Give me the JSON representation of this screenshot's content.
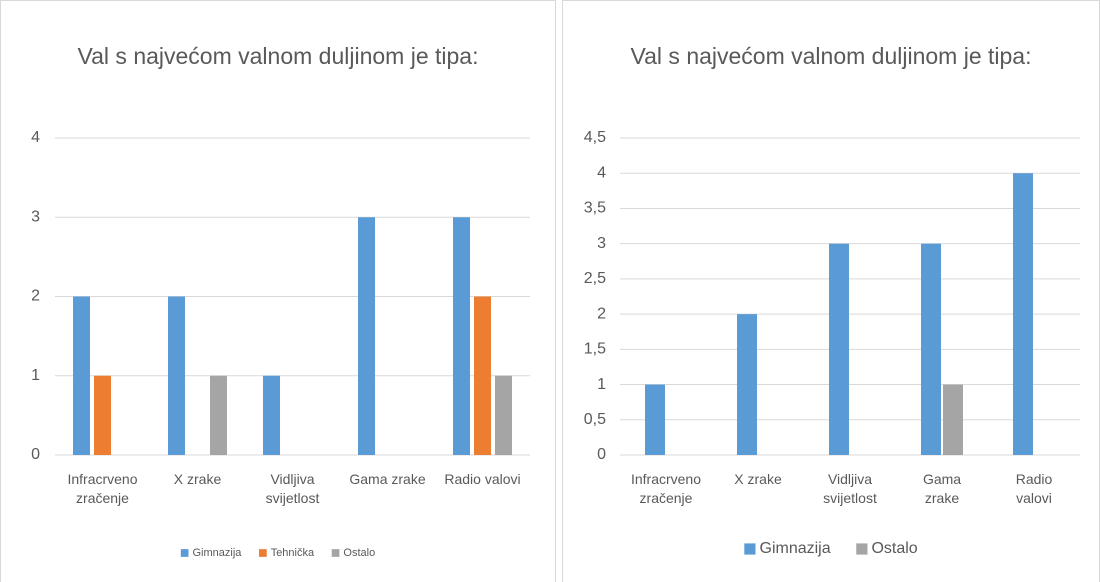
{
  "chart_data": [
    {
      "type": "bar",
      "title": "Val s najvećom valnom duljinom je tipa:",
      "categories": [
        "Infracrveno zračenje",
        "X zrake",
        "Vidljiva svijetlost",
        "Gama zrake",
        "Radio valovi"
      ],
      "series": [
        {
          "name": "Gimnazija",
          "color": "#5b9bd5",
          "values": [
            2,
            2,
            1,
            3,
            3
          ]
        },
        {
          "name": "Tehnička",
          "color": "#ed7d31",
          "values": [
            1,
            0,
            0,
            0,
            2
          ]
        },
        {
          "name": "Ostalo",
          "color": "#a5a5a5",
          "values": [
            0,
            1,
            0,
            0,
            1
          ]
        }
      ],
      "ylim": [
        0,
        4
      ],
      "yticks": [
        0,
        1,
        2,
        3,
        4
      ],
      "grid": true,
      "legend": "bottom"
    },
    {
      "type": "bar",
      "title": "Val s najvećom valnom duljinom je tipa:",
      "categories": [
        "Infracrveno zračenje",
        "X zrake",
        "Vidljiva svijetlost",
        "Gama zrake",
        "Radio valovi"
      ],
      "series": [
        {
          "name": "Gimnazija",
          "color": "#5b9bd5",
          "values": [
            1,
            2,
            3,
            3,
            4
          ]
        },
        {
          "name": "Ostalo",
          "color": "#a5a5a5",
          "values": [
            0,
            0,
            0,
            1,
            0
          ]
        }
      ],
      "ylim": [
        0,
        4.5
      ],
      "yticks": [
        0,
        {
          "value": 0.5,
          "label": "0,5"
        },
        1,
        {
          "value": 1.5,
          "label": "1,5"
        },
        2,
        {
          "value": 2.5,
          "label": "2,5"
        },
        3,
        {
          "value": 3.5,
          "label": "3,5"
        },
        4,
        {
          "value": 4.5,
          "label": "4,5"
        }
      ],
      "grid": true,
      "legend": "bottom"
    }
  ]
}
